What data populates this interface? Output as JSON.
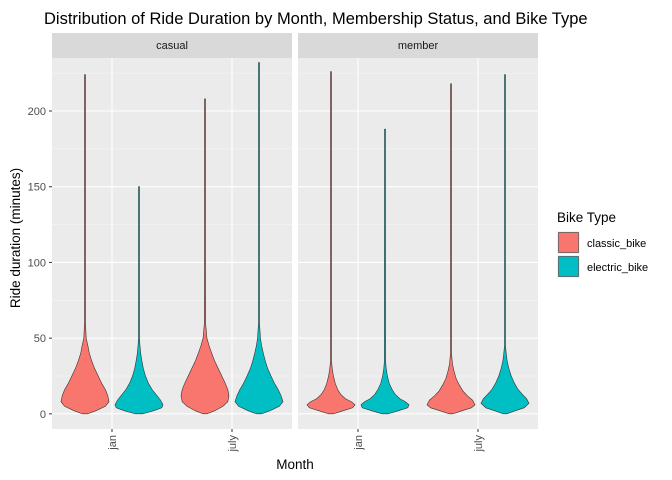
{
  "chart_data": {
    "type": "violin",
    "title": "Distribution of Ride Duration by Month, Membership Status, and Bike Type",
    "xlabel": "Month",
    "ylabel": "Ride duration (minutes)",
    "categories": [
      "jan",
      "july"
    ],
    "y_ticks": [
      0,
      50,
      100,
      150,
      200
    ],
    "ylim": [
      -10,
      235
    ],
    "grid": true,
    "legend": {
      "title": "Bike Type",
      "position": "right"
    },
    "series_colors": {
      "classic_bike": "#F8766D",
      "electric_bike": "#00BFC4"
    },
    "facets": [
      {
        "label": "casual",
        "violins": [
          {
            "month": "jan",
            "bike_type": "classic_bike",
            "max": 224,
            "profile": [
              [
                0,
                0.1
              ],
              [
                2,
                0.45
              ],
              [
                5,
                0.85
              ],
              [
                8,
                1.0
              ],
              [
                12,
                0.95
              ],
              [
                16,
                0.85
              ],
              [
                20,
                0.7
              ],
              [
                25,
                0.55
              ],
              [
                30,
                0.4
              ],
              [
                35,
                0.28
              ],
              [
                40,
                0.18
              ],
              [
                45,
                0.12
              ],
              [
                50,
                0.05
              ],
              [
                60,
                0.02
              ],
              [
                100,
                0.012
              ],
              [
                224,
                0.008
              ]
            ]
          },
          {
            "month": "jan",
            "bike_type": "electric_bike",
            "max": 150,
            "profile": [
              [
                0,
                0.15
              ],
              [
                2,
                0.6
              ],
              [
                4,
                0.95
              ],
              [
                6,
                1.0
              ],
              [
                9,
                0.9
              ],
              [
                12,
                0.75
              ],
              [
                16,
                0.55
              ],
              [
                20,
                0.4
              ],
              [
                25,
                0.27
              ],
              [
                30,
                0.18
              ],
              [
                35,
                0.12
              ],
              [
                40,
                0.07
              ],
              [
                45,
                0.04
              ],
              [
                50,
                0.02
              ],
              [
                60,
                0.008
              ],
              [
                150,
                0.005
              ]
            ]
          },
          {
            "month": "july",
            "bike_type": "classic_bike",
            "max": 208,
            "profile": [
              [
                0,
                0.08
              ],
              [
                2,
                0.4
              ],
              [
                5,
                0.75
              ],
              [
                8,
                0.95
              ],
              [
                12,
                1.0
              ],
              [
                16,
                0.95
              ],
              [
                20,
                0.85
              ],
              [
                25,
                0.7
              ],
              [
                30,
                0.55
              ],
              [
                35,
                0.4
              ],
              [
                40,
                0.28
              ],
              [
                45,
                0.17
              ],
              [
                50,
                0.08
              ],
              [
                60,
                0.025
              ],
              [
                115,
                0.015
              ],
              [
                208,
                0.008
              ]
            ]
          },
          {
            "month": "july",
            "bike_type": "electric_bike",
            "max": 232,
            "profile": [
              [
                0,
                0.1
              ],
              [
                2,
                0.45
              ],
              [
                5,
                0.85
              ],
              [
                8,
                1.0
              ],
              [
                12,
                0.92
              ],
              [
                16,
                0.8
              ],
              [
                20,
                0.65
              ],
              [
                25,
                0.5
              ],
              [
                30,
                0.36
              ],
              [
                35,
                0.26
              ],
              [
                40,
                0.18
              ],
              [
                45,
                0.11
              ],
              [
                50,
                0.06
              ],
              [
                60,
                0.02
              ],
              [
                70,
                0.012
              ],
              [
                232,
                0.006
              ]
            ]
          }
        ]
      },
      {
        "label": "member",
        "violins": [
          {
            "month": "jan",
            "bike_type": "classic_bike",
            "max": 226,
            "profile": [
              [
                0,
                0.1
              ],
              [
                2,
                0.5
              ],
              [
                4,
                0.9
              ],
              [
                6,
                1.0
              ],
              [
                8,
                0.85
              ],
              [
                10,
                0.6
              ],
              [
                13,
                0.4
              ],
              [
                16,
                0.28
              ],
              [
                20,
                0.18
              ],
              [
                25,
                0.1
              ],
              [
                30,
                0.05
              ],
              [
                35,
                0.02
              ],
              [
                226,
                0.008
              ]
            ]
          },
          {
            "month": "jan",
            "bike_type": "electric_bike",
            "max": 188,
            "profile": [
              [
                0,
                0.12
              ],
              [
                2,
                0.55
              ],
              [
                4,
                0.95
              ],
              [
                6,
                1.0
              ],
              [
                8,
                0.85
              ],
              [
                10,
                0.62
              ],
              [
                13,
                0.42
              ],
              [
                16,
                0.3
              ],
              [
                20,
                0.18
              ],
              [
                25,
                0.1
              ],
              [
                30,
                0.05
              ],
              [
                35,
                0.025
              ],
              [
                188,
                0.006
              ]
            ]
          },
          {
            "month": "july",
            "bike_type": "classic_bike",
            "max": 218,
            "profile": [
              [
                0,
                0.08
              ],
              [
                2,
                0.45
              ],
              [
                4,
                0.85
              ],
              [
                6,
                1.0
              ],
              [
                9,
                0.9
              ],
              [
                12,
                0.68
              ],
              [
                15,
                0.5
              ],
              [
                19,
                0.35
              ],
              [
                23,
                0.22
              ],
              [
                28,
                0.13
              ],
              [
                33,
                0.06
              ],
              [
                40,
                0.02
              ],
              [
                80,
                0.012
              ],
              [
                218,
                0.008
              ]
            ]
          },
          {
            "month": "july",
            "bike_type": "electric_bike",
            "max": 224,
            "profile": [
              [
                0,
                0.08
              ],
              [
                2,
                0.42
              ],
              [
                4,
                0.8
              ],
              [
                7,
                1.0
              ],
              [
                10,
                0.9
              ],
              [
                13,
                0.72
              ],
              [
                16,
                0.55
              ],
              [
                20,
                0.4
              ],
              [
                25,
                0.26
              ],
              [
                30,
                0.16
              ],
              [
                35,
                0.09
              ],
              [
                40,
                0.05
              ],
              [
                45,
                0.015
              ],
              [
                224,
                0.006
              ]
            ]
          }
        ]
      }
    ]
  }
}
